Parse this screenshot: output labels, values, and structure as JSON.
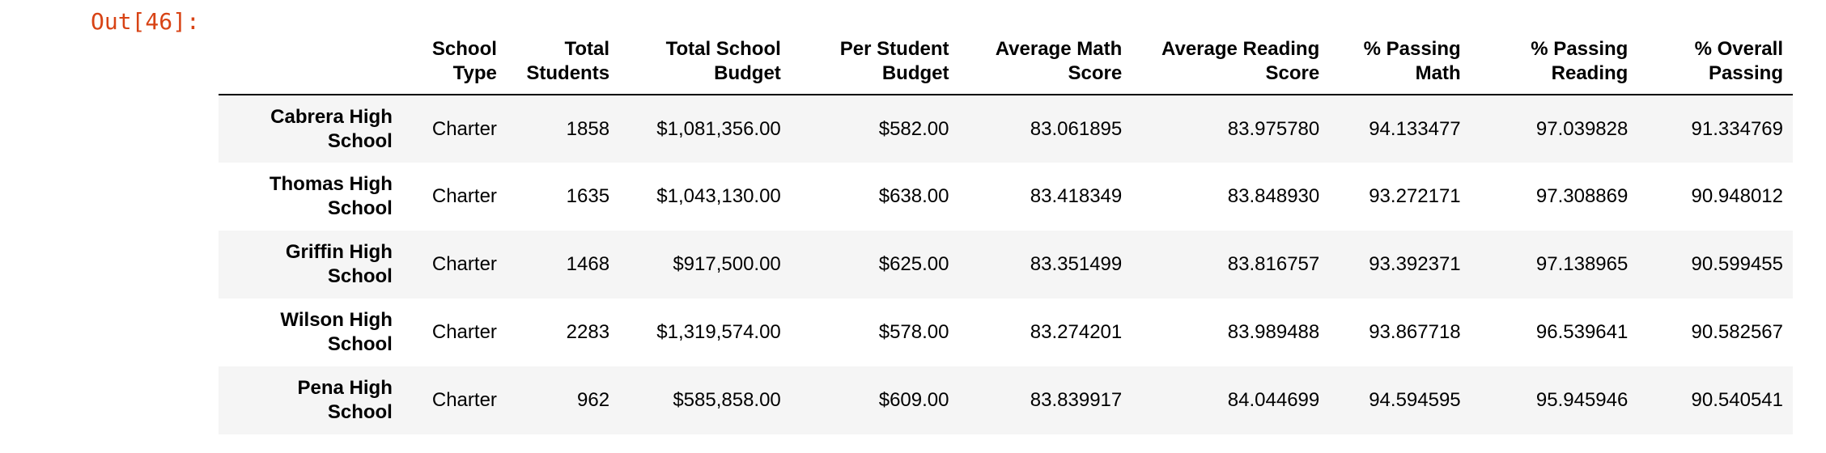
{
  "output_prompt": "Out[46]:",
  "table": {
    "columns": [
      "",
      "School Type",
      "Total Students",
      "Total School Budget",
      "Per Student Budget",
      "Average Math Score",
      "Average Reading Score",
      "% Passing Math",
      "% Passing Reading",
      "% Overall Passing"
    ],
    "rows": [
      {
        "school": "Cabrera High School",
        "type": "Charter",
        "total_students": "1858",
        "budget": "$1,081,356.00",
        "per_student": "$582.00",
        "avg_math": "83.061895",
        "avg_reading": "83.975780",
        "pct_math": "94.133477",
        "pct_reading": "97.039828",
        "pct_overall": "91.334769"
      },
      {
        "school": "Thomas High School",
        "type": "Charter",
        "total_students": "1635",
        "budget": "$1,043,130.00",
        "per_student": "$638.00",
        "avg_math": "83.418349",
        "avg_reading": "83.848930",
        "pct_math": "93.272171",
        "pct_reading": "97.308869",
        "pct_overall": "90.948012"
      },
      {
        "school": "Griffin High School",
        "type": "Charter",
        "total_students": "1468",
        "budget": "$917,500.00",
        "per_student": "$625.00",
        "avg_math": "83.351499",
        "avg_reading": "83.816757",
        "pct_math": "93.392371",
        "pct_reading": "97.138965",
        "pct_overall": "90.599455"
      },
      {
        "school": "Wilson High School",
        "type": "Charter",
        "total_students": "2283",
        "budget": "$1,319,574.00",
        "per_student": "$578.00",
        "avg_math": "83.274201",
        "avg_reading": "83.989488",
        "pct_math": "93.867718",
        "pct_reading": "96.539641",
        "pct_overall": "90.582567"
      },
      {
        "school": "Pena High School",
        "type": "Charter",
        "total_students": "962",
        "budget": "$585,858.00",
        "per_student": "$609.00",
        "avg_math": "83.839917",
        "avg_reading": "84.044699",
        "pct_math": "94.594595",
        "pct_reading": "95.945946",
        "pct_overall": "90.540541"
      }
    ]
  }
}
